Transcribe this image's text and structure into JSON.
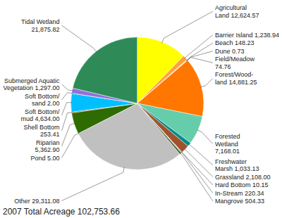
{
  "chart_data": {
    "type": "pie",
    "categories": [
      "Agricultural\nLand 12,624.57",
      "Barrier Island 1,238.94",
      "Beach 148.23",
      "Dune 0.73",
      "Field/Meadow\n74.76",
      "Forest/Wood-\nland 14,881.25",
      "Forested\nWetland\n7,168.01",
      "Freshwater\nMarsh 1,033.13",
      "Grassland 2,108.00",
      "Hard Bottom 10.15",
      "In-Stream 220.34",
      "Mangrove 504.33",
      "Other 29,311.08",
      "Pond 5.00",
      "Riparian\n5,362.90",
      "Shell Bottom\n253.41",
      "Soft Bottom/\nmud 4,634.00",
      "Soft Bottom/\nsand 2.00",
      "Submerged Aquatic\nVegetation 1,297.00",
      "Tidal Wetland\n21,875.82"
    ],
    "values": [
      12624.57,
      1238.94,
      148.23,
      0.73,
      74.76,
      14881.25,
      7168.01,
      1033.13,
      2108.0,
      10.15,
      220.34,
      504.33,
      29311.08,
      5.0,
      5362.9,
      253.41,
      4634.0,
      2.0,
      1297.0,
      21875.82
    ],
    "colors": [
      "#FFFF00",
      "#FFA040",
      "#FFD700",
      "#D2B48C",
      "#E8A000",
      "#FF7700",
      "#66CDAA",
      "#008B8B",
      "#A0522D",
      "#4682B4",
      "#C8A0C8",
      "#4B6B2B",
      "#C0C0C0",
      "#228B22",
      "#2E6B00",
      "#8B3A00",
      "#00BFFF",
      "#8060C0",
      "#9370DB",
      "#2E8B57"
    ],
    "annotations": [
      "2007 Total Acreage 102,753.66"
    ]
  }
}
